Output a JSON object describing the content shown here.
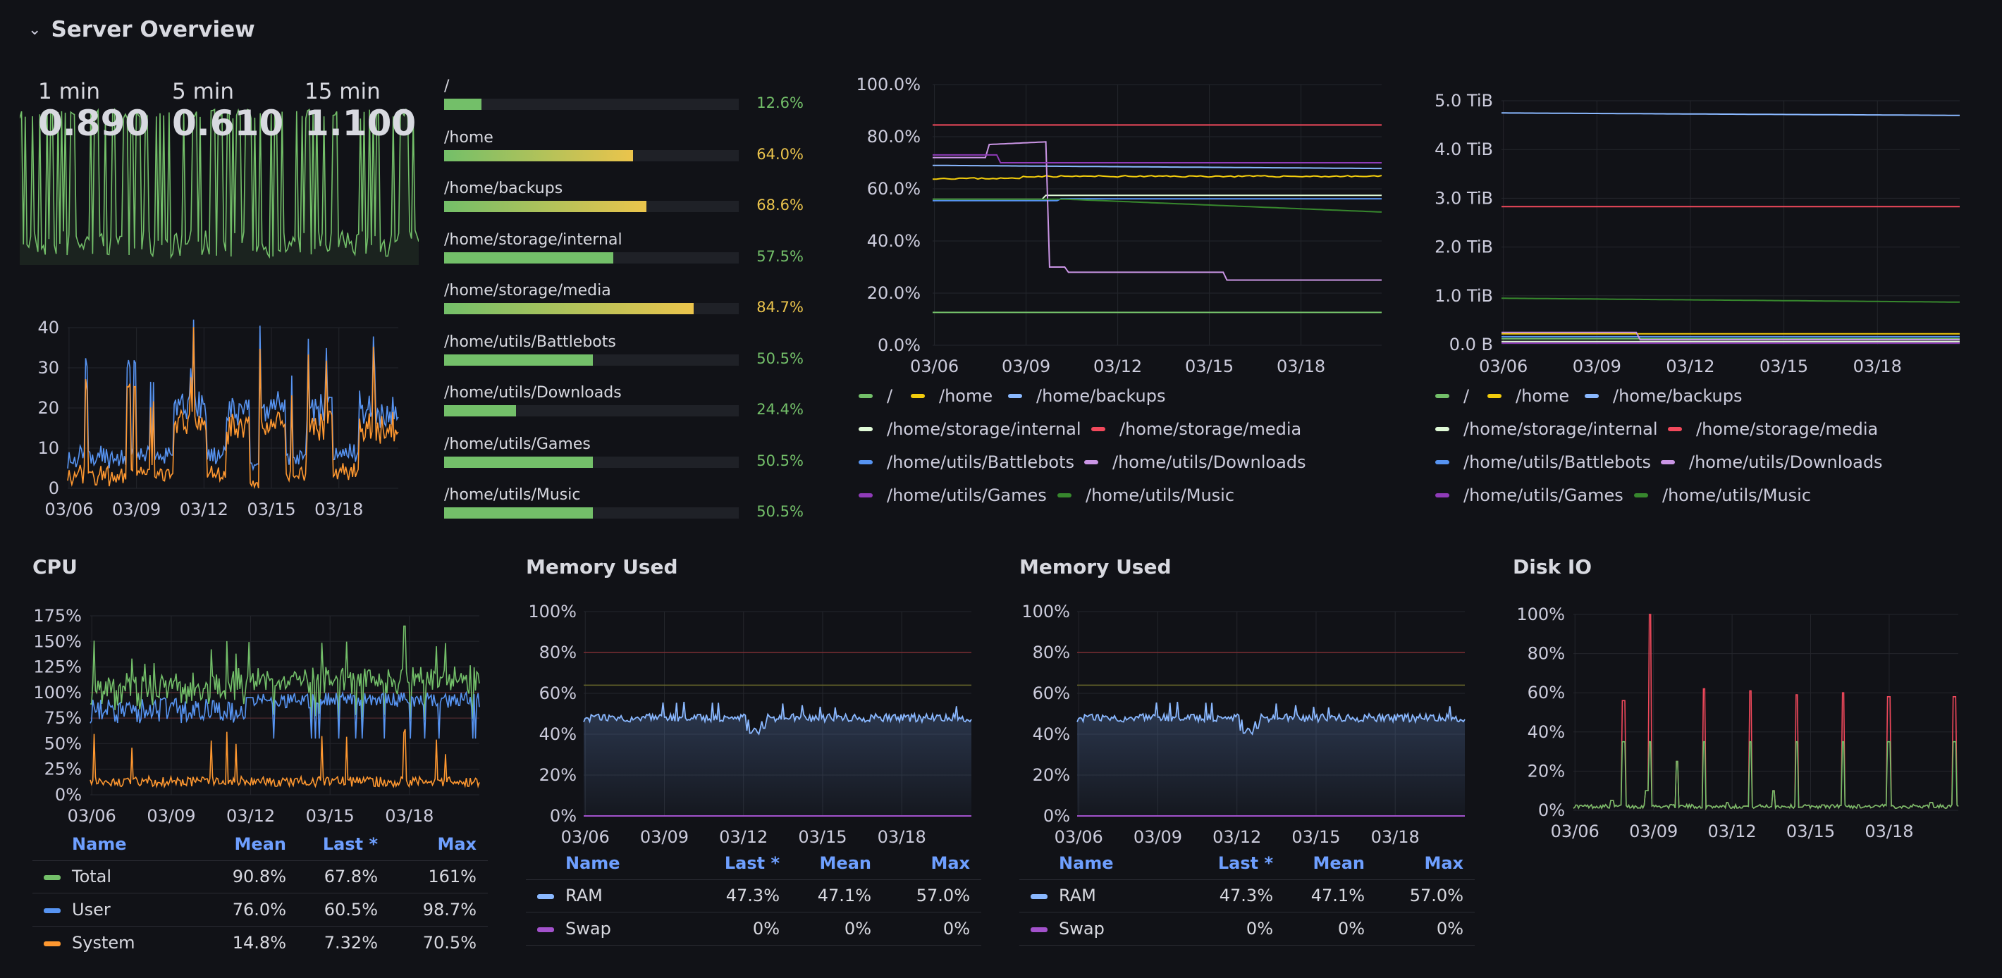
{
  "row": {
    "title": "Server Overview"
  },
  "load": {
    "labels": [
      "1 min",
      "5 min",
      "15 min"
    ],
    "values": [
      "0.890",
      "0.610",
      "1.100"
    ],
    "color": "#73bf69"
  },
  "load_chart": {
    "y_ticks": [
      "40",
      "30",
      "20",
      "10",
      "0"
    ],
    "x_ticks": [
      "03/06",
      "03/09",
      "03/12",
      "03/15",
      "03/18"
    ]
  },
  "disk_bars": [
    {
      "label": "/",
      "value": 12.6,
      "text": "12.6%",
      "color": "#73bf69"
    },
    {
      "label": "/home",
      "value": 64.0,
      "text": "64.0%",
      "color": "#ebc44c"
    },
    {
      "label": "/home/backups",
      "value": 68.6,
      "text": "68.6%",
      "color": "#ebc44c"
    },
    {
      "label": "/home/storage/internal",
      "value": 57.5,
      "text": "57.5%",
      "color": "#73bf69"
    },
    {
      "label": "/home/storage/media",
      "value": 84.7,
      "text": "84.7%",
      "color": "#ebc44c"
    },
    {
      "label": "/home/utils/Battlebots",
      "value": 50.5,
      "text": "50.5%",
      "color": "#73bf69"
    },
    {
      "label": "/home/utils/Downloads",
      "value": 24.4,
      "text": "24.4%",
      "color": "#73bf69"
    },
    {
      "label": "/home/utils/Games",
      "value": 50.5,
      "text": "50.5%",
      "color": "#73bf69"
    },
    {
      "label": "/home/utils/Music",
      "value": 50.5,
      "text": "50.5%",
      "color": "#73bf69"
    }
  ],
  "disk_pct_chart": {
    "y_ticks": [
      "100.0%",
      "80.0%",
      "60.0%",
      "40.0%",
      "20.0%",
      "0.0%"
    ],
    "x_ticks": [
      "03/06",
      "03/09",
      "03/12",
      "03/15",
      "03/18"
    ]
  },
  "disk_bytes_chart": {
    "y_ticks": [
      "5.0 TiB",
      "4.0 TiB",
      "3.0 TiB",
      "2.0 TiB",
      "1.0 TiB",
      "0.0 B"
    ],
    "x_ticks": [
      "03/06",
      "03/09",
      "03/12",
      "03/15",
      "03/18"
    ]
  },
  "fs_legend": [
    {
      "name": "/",
      "color": "#73bf69"
    },
    {
      "name": "/home",
      "color": "#f2cc0c"
    },
    {
      "name": "/home/backups",
      "color": "#8ab8ff"
    },
    {
      "name": "/home/storage/internal",
      "color": "#e0f9d7"
    },
    {
      "name": "/home/storage/media",
      "color": "#f2495c"
    },
    {
      "name": "/home/utils/Battlebots",
      "color": "#5794f2"
    },
    {
      "name": "/home/utils/Downloads",
      "color": "#ca95e5"
    },
    {
      "name": "/home/utils/Games",
      "color": "#8f3bb8"
    },
    {
      "name": "/home/utils/Music",
      "color": "#37872d"
    }
  ],
  "cpu": {
    "title": "CPU",
    "y_ticks": [
      "175%",
      "150%",
      "125%",
      "100%",
      "75%",
      "50%",
      "25%",
      "0%"
    ],
    "x_ticks": [
      "03/06",
      "03/09",
      "03/12",
      "03/15",
      "03/18"
    ],
    "table": {
      "headers": [
        "Name",
        "Mean",
        "Last *",
        "Max"
      ],
      "rows": [
        {
          "name": "Total",
          "color": "#73bf69",
          "v1": "90.8%",
          "v2": "67.8%",
          "v3": "161%"
        },
        {
          "name": "User",
          "color": "#5794f2",
          "v1": "76.0%",
          "v2": "60.5%",
          "v3": "98.7%"
        },
        {
          "name": "System",
          "color": "#ff9830",
          "v1": "14.8%",
          "v2": "7.32%",
          "v3": "70.5%"
        }
      ]
    }
  },
  "memory": [
    {
      "title": "Memory Used",
      "y_ticks": [
        "100%",
        "80%",
        "60%",
        "40%",
        "20%",
        "0%"
      ],
      "x_ticks": [
        "03/06",
        "03/09",
        "03/12",
        "03/15",
        "03/18"
      ],
      "table": {
        "headers": [
          "Name",
          "Last *",
          "Mean",
          "Max"
        ],
        "rows": [
          {
            "name": "RAM",
            "color": "#8ab8ff",
            "v1": "47.3%",
            "v2": "47.1%",
            "v3": "57.0%"
          },
          {
            "name": "Swap",
            "color": "#a352cc",
            "v1": "0%",
            "v2": "0%",
            "v3": "0%"
          }
        ]
      }
    },
    {
      "title": "Memory Used",
      "y_ticks": [
        "100%",
        "80%",
        "60%",
        "40%",
        "20%",
        "0%"
      ],
      "x_ticks": [
        "03/06",
        "03/09",
        "03/12",
        "03/15",
        "03/18"
      ],
      "table": {
        "headers": [
          "Name",
          "Last *",
          "Mean",
          "Max"
        ],
        "rows": [
          {
            "name": "RAM",
            "color": "#8ab8ff",
            "v1": "47.3%",
            "v2": "47.1%",
            "v3": "57.0%"
          },
          {
            "name": "Swap",
            "color": "#a352cc",
            "v1": "0%",
            "v2": "0%",
            "v3": "0%"
          }
        ]
      }
    }
  ],
  "diskio": {
    "title": "Disk IO",
    "y_ticks": [
      "100%",
      "80%",
      "60%",
      "40%",
      "20%",
      "0%"
    ],
    "x_ticks": [
      "03/06",
      "03/09",
      "03/12",
      "03/15",
      "03/18"
    ]
  }
}
